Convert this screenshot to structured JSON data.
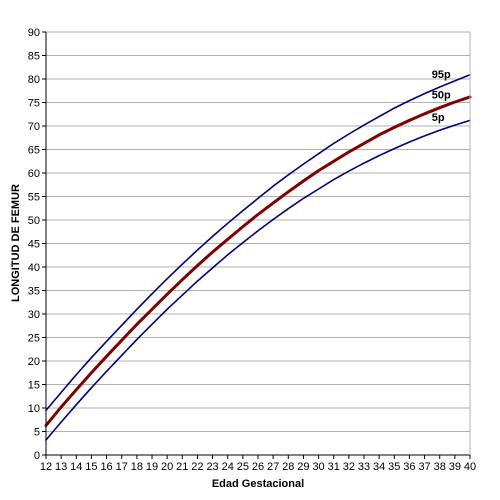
{
  "colors": {
    "grid": "#b0b0b0",
    "axis": "#000000",
    "percentile_outer": "#000080",
    "percentile_median": "#800000"
  },
  "chart_data": {
    "type": "line",
    "xlabel": "Edad Gestacional",
    "ylabel": "LONGITUD DE FEMUR",
    "xlim": [
      12,
      40
    ],
    "ylim": [
      0,
      90
    ],
    "x_ticks": [
      12,
      13,
      14,
      15,
      16,
      17,
      18,
      19,
      20,
      21,
      22,
      23,
      24,
      25,
      26,
      27,
      28,
      29,
      30,
      31,
      32,
      33,
      34,
      35,
      36,
      37,
      38,
      39,
      40
    ],
    "y_ticks": [
      0,
      5,
      10,
      15,
      20,
      25,
      30,
      35,
      40,
      45,
      50,
      55,
      60,
      65,
      70,
      75,
      80,
      85,
      90
    ],
    "grid": "horizontal",
    "legend": "none",
    "x": [
      12,
      13,
      14,
      15,
      16,
      17,
      18,
      19,
      20,
      21,
      22,
      23,
      24,
      25,
      26,
      27,
      28,
      29,
      30,
      31,
      32,
      33,
      34,
      35,
      36,
      37,
      38,
      39,
      40
    ],
    "series": [
      {
        "name": "95p",
        "color": "#000080",
        "values": [
          9.5,
          13.3,
          17.1,
          20.7,
          24.2,
          27.6,
          31.0,
          34.3,
          37.5,
          40.6,
          43.6,
          46.5,
          49.3,
          52.0,
          54.6,
          57.2,
          59.6,
          61.9,
          64.1,
          66.3,
          68.3,
          70.2,
          72.0,
          73.8,
          75.4,
          76.9,
          78.3,
          79.6,
          80.9
        ]
      },
      {
        "name": "50p",
        "color": "#800000",
        "values": [
          6.3,
          10.2,
          13.9,
          17.5,
          21.0,
          24.4,
          27.8,
          31.0,
          34.2,
          37.3,
          40.3,
          43.2,
          45.9,
          48.6,
          51.2,
          53.6,
          56.0,
          58.3,
          60.5,
          62.5,
          64.5,
          66.3,
          68.1,
          69.7,
          71.2,
          72.6,
          73.9,
          75.1,
          76.2
        ]
      },
      {
        "name": "5p",
        "color": "#000080",
        "values": [
          3.2,
          7.0,
          10.7,
          14.3,
          17.8,
          21.2,
          24.6,
          27.8,
          31.0,
          34.0,
          37.0,
          39.8,
          42.6,
          45.2,
          47.7,
          50.1,
          52.4,
          54.6,
          56.6,
          58.6,
          60.4,
          62.1,
          63.7,
          65.2,
          66.6,
          67.9,
          69.1,
          70.2,
          71.2
        ]
      }
    ]
  }
}
